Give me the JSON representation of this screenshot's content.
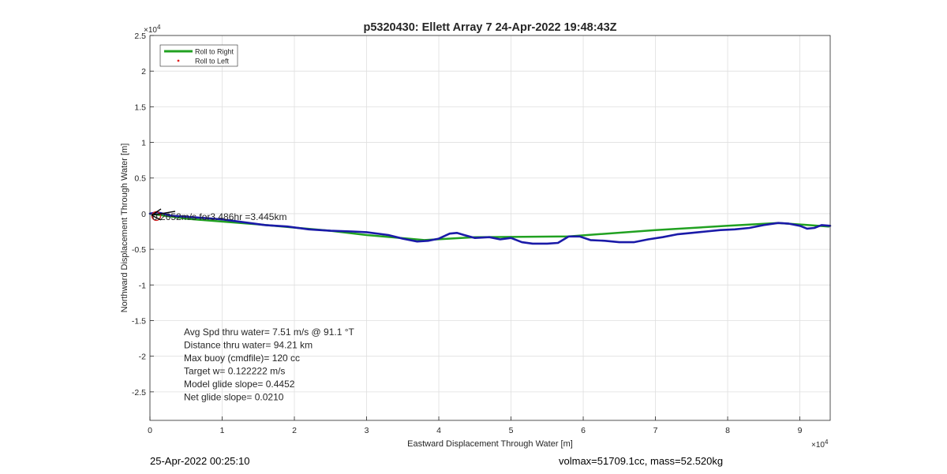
{
  "chart_data": {
    "type": "line",
    "title": "p5320430: Ellett Array 7 24-Apr-2022 19:48:43Z",
    "xlabel": "Eastward Displacement Through Water [m]",
    "ylabel": "Northward Displacement Through Water [m]",
    "x_exponent": "×10",
    "x_exponent_power": "4",
    "y_exponent": "×10",
    "y_exponent_power": "4",
    "xlim": [
      0,
      94200
    ],
    "ylim": [
      -29000,
      25000
    ],
    "x_ticks": [
      0,
      10000,
      20000,
      30000,
      40000,
      50000,
      60000,
      70000,
      80000,
      90000
    ],
    "x_tick_labels": [
      "0",
      "1",
      "2",
      "3",
      "4",
      "5",
      "6",
      "7",
      "8",
      "9"
    ],
    "y_ticks": [
      25000,
      20000,
      15000,
      10000,
      5000,
      0,
      -5000,
      -10000,
      -15000,
      -20000,
      -25000
    ],
    "y_tick_labels": [
      "2.5",
      "2",
      "1.5",
      "1",
      "0.5",
      "0",
      "-0.5",
      "-1",
      "-1.5",
      "-2",
      "-2.5"
    ],
    "grid": true,
    "legend_position": "top-left",
    "legend": [
      {
        "label": "Roll to Right",
        "color": "#21a121",
        "style": "line"
      },
      {
        "label": "Roll to Left",
        "color": "#e02020",
        "style": "dot"
      }
    ],
    "series": [
      {
        "name": "Roll to Right",
        "color": "#21a121",
        "x": [
          0,
          5000,
          15000,
          25000,
          30000,
          38000,
          45000,
          58000,
          70000,
          80000,
          87000,
          94000
        ],
        "y": [
          0,
          -700,
          -1500,
          -2400,
          -3000,
          -3700,
          -3300,
          -3200,
          -2300,
          -1700,
          -1300,
          -1800
        ]
      },
      {
        "color": "#1a1aa8",
        "x": [
          0,
          1000,
          3000,
          6000,
          10000,
          13000,
          16000,
          19000,
          22000,
          25000,
          28000,
          30000,
          33000,
          35000,
          37000,
          38500,
          40000,
          41500,
          42500,
          43500,
          45000,
          47000,
          48500,
          50000,
          51500,
          53000,
          55000,
          56500,
          58000,
          59500,
          61000,
          63000,
          65000,
          67000,
          69000,
          71000,
          73000,
          75000,
          77000,
          79000,
          81000,
          83000,
          85000,
          87000,
          88500,
          90000,
          91000,
          92000,
          93000,
          94200
        ],
        "y": [
          0,
          200,
          -300,
          -500,
          -800,
          -1200,
          -1600,
          -1800,
          -2200,
          -2400,
          -2500,
          -2600,
          -3000,
          -3500,
          -3900,
          -3800,
          -3500,
          -2800,
          -2700,
          -3000,
          -3400,
          -3300,
          -3600,
          -3400,
          -4000,
          -4200,
          -4200,
          -4100,
          -3200,
          -3200,
          -3700,
          -3800,
          -4000,
          -4000,
          -3600,
          -3300,
          -2900,
          -2700,
          -2500,
          -2300,
          -2200,
          -2000,
          -1600,
          -1300,
          -1400,
          -1700,
          -2100,
          -2000,
          -1600,
          -1700
        ]
      }
    ],
    "annotations": {
      "arrow_label": "0.2652m/s for3.486hr =3.445km",
      "stats": [
        "Avg Spd thru water=  7.51 m/s @  91.1 °T",
        "Distance thru water= 94.21 km",
        "Max buoy (cmdfile)= 120 cc",
        "Target w= 0.122222 m/s",
        "Model glide slope= 0.4452",
        "Net glide slope= 0.0210"
      ]
    }
  },
  "footer": {
    "date": "25-Apr-2022 00:25:10",
    "summary": "volmax=51709.1cc, mass=52.520kg"
  }
}
